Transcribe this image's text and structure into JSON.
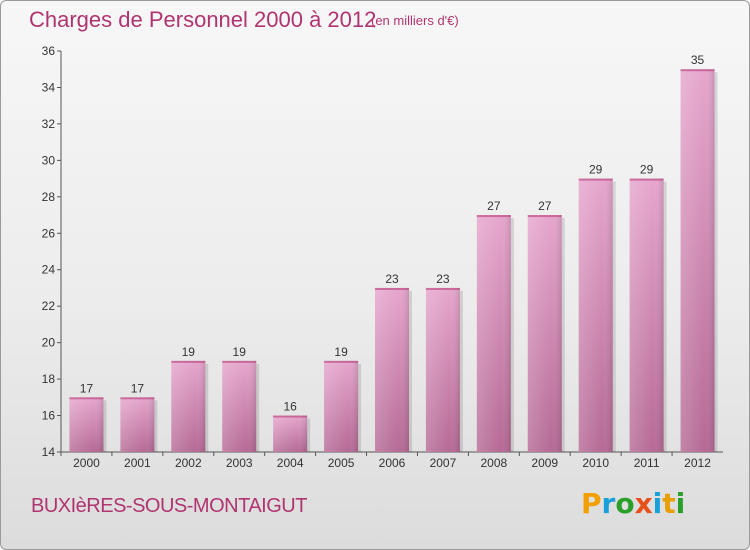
{
  "chart_data": {
    "type": "bar",
    "title": "Charges de Personnel 2000 à 2012",
    "subtitle": "(en milliers d'€)",
    "categories": [
      "2000",
      "2001",
      "2002",
      "2003",
      "2004",
      "2005",
      "2006",
      "2007",
      "2008",
      "2009",
      "2010",
      "2011",
      "2012"
    ],
    "values": [
      17,
      17,
      19,
      19,
      16,
      19,
      23,
      23,
      27,
      27,
      29,
      29,
      35
    ],
    "ylim": [
      14,
      36
    ],
    "yticks": [
      14,
      16,
      18,
      20,
      22,
      24,
      26,
      28,
      30,
      32,
      34,
      36
    ],
    "grid": false,
    "bar_color": "#d38ab5"
  },
  "commune": "BUXIèRES-SOUS-MONTAIGUT",
  "logo": {
    "letters": [
      "P",
      "r",
      "o",
      "x",
      "i",
      "t",
      "i"
    ],
    "colors": [
      "#f2a000",
      "#1aa0d8",
      "#2aa02a",
      "#e8501a",
      "#1aa0d8",
      "#e8a000",
      "#2aa02a"
    ]
  }
}
